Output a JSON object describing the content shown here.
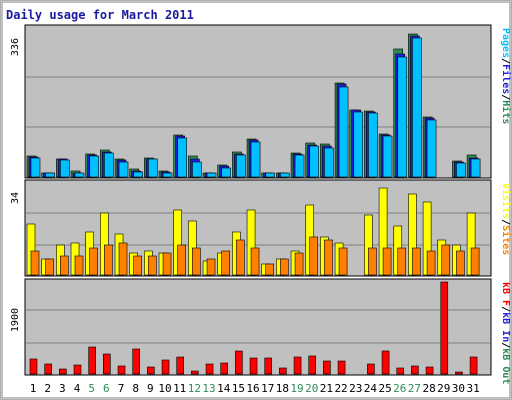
{
  "chart_data": [
    {
      "type": "bar",
      "title": "Daily usage for March 2011",
      "panel": "hits",
      "ymax_label": "336",
      "categories": [
        "1",
        "2",
        "3",
        "4",
        "5",
        "6",
        "7",
        "8",
        "9",
        "10",
        "11",
        "12",
        "13",
        "14",
        "15",
        "16",
        "17",
        "18",
        "19",
        "20",
        "21",
        "22",
        "23",
        "24",
        "25",
        "26",
        "27",
        "28",
        "29",
        "30",
        "31"
      ],
      "weekend_days": [
        "5",
        "6",
        "12",
        "13",
        "19",
        "20",
        "26",
        "27"
      ],
      "legend": [
        "Pages",
        "/",
        "Files",
        "/",
        "Hits"
      ],
      "legend_colors": [
        "#00c0ff",
        "#000000",
        "#2020e0",
        "#000000",
        "#2e8b57"
      ],
      "series": [
        {
          "name": "Hits",
          "color": "#2e8b57",
          "values": [
            48,
            10,
            42,
            14,
            52,
            62,
            40,
            18,
            43,
            14,
            96,
            48,
            10,
            28,
            56,
            86,
            10,
            8,
            54,
            78,
            76,
            214,
            154,
            150,
            98,
            292,
            326,
            136,
            0,
            36,
            50
          ]
        },
        {
          "name": "Files",
          "color": "#2020e0",
          "values": [
            46,
            8,
            40,
            10,
            50,
            58,
            38,
            14,
            42,
            12,
            94,
            40,
            8,
            24,
            52,
            84,
            10,
            8,
            52,
            74,
            70,
            212,
            152,
            148,
            96,
            280,
            322,
            134,
            0,
            34,
            44
          ]
        },
        {
          "name": "Pages",
          "color": "#00c0ff",
          "values": [
            44,
            8,
            38,
            10,
            48,
            54,
            34,
            12,
            40,
            10,
            90,
            34,
            8,
            20,
            50,
            80,
            8,
            8,
            50,
            70,
            66,
            206,
            148,
            146,
            94,
            274,
            318,
            130,
            0,
            32,
            42
          ]
        }
      ]
    },
    {
      "type": "bar",
      "panel": "visits",
      "ymax_label": "34",
      "categories": [
        "1",
        "2",
        "3",
        "4",
        "5",
        "6",
        "7",
        "8",
        "9",
        "10",
        "11",
        "12",
        "13",
        "14",
        "15",
        "16",
        "17",
        "18",
        "19",
        "20",
        "21",
        "22",
        "23",
        "24",
        "25",
        "26",
        "27",
        "28",
        "29",
        "30",
        "31"
      ],
      "legend": [
        "Visits",
        "/",
        "Sites"
      ],
      "legend_colors": [
        "#ffff00",
        "#000000",
        "#ff8000"
      ],
      "series": [
        {
          "name": "Visits",
          "color": "#ffff00",
          "values": [
            19,
            6,
            11,
            12,
            16,
            23,
            15,
            8,
            9,
            8,
            24,
            20,
            5,
            8,
            16,
            24,
            4,
            6,
            9,
            26,
            14,
            12,
            0,
            22,
            32,
            18,
            30,
            27,
            13,
            11,
            23
          ]
        },
        {
          "name": "Sites",
          "color": "#ff8000",
          "values": [
            9,
            6,
            7,
            7,
            10,
            11,
            12,
            7,
            7,
            8,
            11,
            10,
            6,
            9,
            13,
            10,
            4,
            6,
            8,
            14,
            13,
            10,
            0,
            10,
            10,
            10,
            10,
            9,
            11,
            9,
            10
          ]
        }
      ]
    },
    {
      "type": "bar",
      "panel": "kbytes",
      "ymax_label": "1900",
      "categories": [
        "1",
        "2",
        "3",
        "4",
        "5",
        "6",
        "7",
        "8",
        "9",
        "10",
        "11",
        "12",
        "13",
        "14",
        "15",
        "16",
        "17",
        "18",
        "19",
        "20",
        "21",
        "22",
        "23",
        "24",
        "25",
        "26",
        "27",
        "28",
        "29",
        "30",
        "31"
      ],
      "legend": [
        "kB F",
        "/",
        "kB In",
        "/",
        "kB Out"
      ],
      "legend_colors": [
        "#ff0000",
        "#000000",
        "#2020e0",
        "#000000",
        "#2e8b57"
      ],
      "series": [
        {
          "name": "kB F",
          "color": "#ff0000",
          "values": [
            320,
            210,
            110,
            180,
            550,
            410,
            160,
            520,
            140,
            290,
            360,
            60,
            210,
            220,
            470,
            330,
            330,
            120,
            360,
            370,
            270,
            270,
            0,
            200,
            470,
            120,
            160,
            150,
            1900,
            40,
            360
          ]
        }
      ]
    }
  ]
}
